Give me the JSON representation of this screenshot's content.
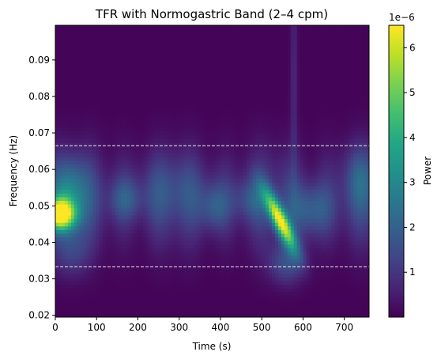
{
  "chart_data": {
    "type": "heatmap",
    "title": "TFR with Normogastric Band (2–4 cpm)",
    "xlabel": "Time (s)",
    "ylabel": "Frequency (Hz)",
    "xlim": [
      0,
      760
    ],
    "ylim": [
      0.0195,
      0.0995
    ],
    "x_ticks": [
      0,
      100,
      200,
      300,
      400,
      500,
      600,
      700
    ],
    "y_ticks": [
      0.02,
      0.03,
      0.04,
      0.05,
      0.06,
      0.07,
      0.08,
      0.09
    ],
    "band_lines": [
      0.0333,
      0.0665
    ],
    "colorbar": {
      "label": "Power",
      "multiplier": "1e−6",
      "ticks": [
        1,
        2,
        3,
        4,
        5,
        6
      ],
      "range": [
        0,
        6.5
      ],
      "colormap": "viridis"
    },
    "hotspots": [
      {
        "time": 15,
        "freq": 0.0475,
        "power": 6.4
      },
      {
        "time": 545,
        "freq": 0.046,
        "power": 6.0
      }
    ],
    "grid": false
  }
}
